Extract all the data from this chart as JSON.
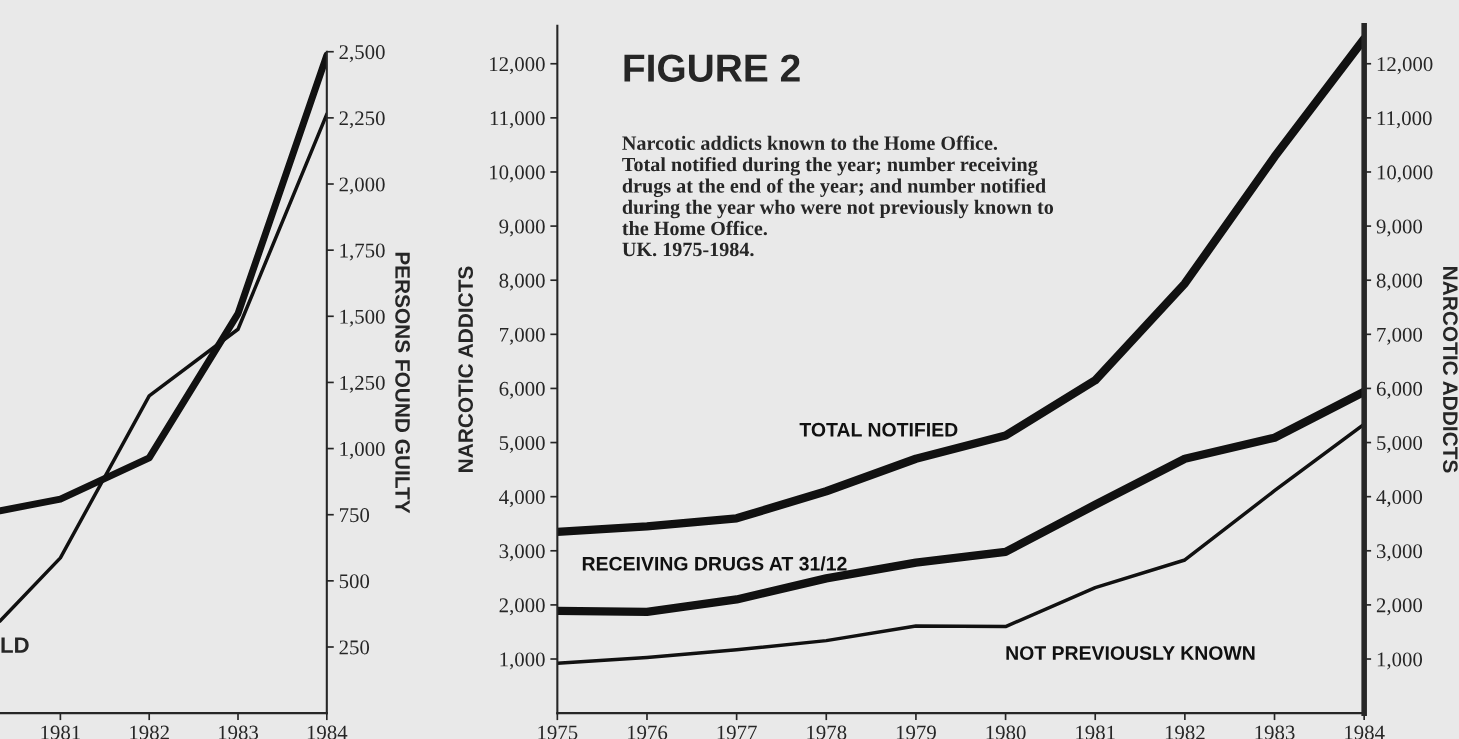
{
  "chart_data": [
    {
      "type": "line",
      "x": [
        1980.32,
        1981,
        1982,
        1983,
        1984
      ],
      "xlim": [
        1980.32,
        1984
      ],
      "xticks": [
        1981,
        1982,
        1983,
        1984
      ],
      "ylim": [
        0,
        2500
      ],
      "yticks": [
        {
          "value": 250,
          "label": "250"
        },
        {
          "value": 500,
          "label": "500"
        },
        {
          "value": 750,
          "label": "750"
        },
        {
          "value": 1000,
          "label": "1,000"
        },
        {
          "value": 1250,
          "label": "1,250"
        },
        {
          "value": 1500,
          "label": "1,500"
        },
        {
          "value": 1750,
          "label": "1,750"
        },
        {
          "value": 2000,
          "label": "2,000"
        },
        {
          "value": 2250,
          "label": "2,250"
        },
        {
          "value": 2500,
          "label": "2,500"
        }
      ],
      "ylabel": "PERSONS FOUND GUILTY",
      "grid": false,
      "legend": false,
      "series": [
        {
          "color": "#111111",
          "values": [
            765,
            809,
            965,
            1510,
            2486
          ]
        },
        {
          "color": "#111111",
          "values": [
            348,
            587,
            1199,
            1451,
            2264
          ]
        }
      ],
      "annotations": [
        "LD"
      ]
    },
    {
      "type": "line",
      "title": "FIGURE 2",
      "subtitle": "Narcotic addicts known to the Home Office.\nTotal notified during the year; number receiving\ndrugs at the end of the year; and number notified\nduring the year who were not previously known to\nthe Home Office.\nUK. 1975-1984.",
      "x": [
        1975,
        1976,
        1977,
        1978,
        1979,
        1980,
        1981,
        1982,
        1983,
        1984
      ],
      "xlim": [
        1975,
        1984
      ],
      "xticks": [
        1975,
        1976,
        1977,
        1978,
        1979,
        1980,
        1981,
        1982,
        1983,
        1984
      ],
      "ylim": [
        0,
        12700
      ],
      "yticks": [
        {
          "value": 1000,
          "label": "1,000"
        },
        {
          "value": 2000,
          "label": "2,000"
        },
        {
          "value": 3000,
          "label": "3,000"
        },
        {
          "value": 4000,
          "label": "4,000"
        },
        {
          "value": 5000,
          "label": "5,000"
        },
        {
          "value": 6000,
          "label": "6,000"
        },
        {
          "value": 7000,
          "label": "7,000"
        },
        {
          "value": 8000,
          "label": "8,000"
        },
        {
          "value": 9000,
          "label": "9,000"
        },
        {
          "value": 10000,
          "label": "10,000"
        },
        {
          "value": 11000,
          "label": "11,000"
        },
        {
          "value": 12000,
          "label": "12,000"
        }
      ],
      "y2lim": [
        0,
        12700
      ],
      "y2ticks": [
        {
          "value": 1000,
          "label": "1,000"
        },
        {
          "value": 2000,
          "label": "2,000"
        },
        {
          "value": 3000,
          "label": "3,000"
        },
        {
          "value": 4000,
          "label": "4,000"
        },
        {
          "value": 5000,
          "label": "5,000"
        },
        {
          "value": 6000,
          "label": "6,000"
        },
        {
          "value": 7000,
          "label": "7,000"
        },
        {
          "value": 8000,
          "label": "8,000"
        },
        {
          "value": 9000,
          "label": "9,000"
        },
        {
          "value": 10000,
          "label": "10,000"
        },
        {
          "value": 11000,
          "label": "11,000"
        },
        {
          "value": 12000,
          "label": "12,000"
        }
      ],
      "ylabel": "NARCOTIC ADDICTS",
      "y2label": "NARCOTIC ADDICTS",
      "grid": false,
      "legend": false,
      "series": [
        {
          "name": "TOTAL NOTIFIED",
          "color": "#111111",
          "values": [
            3350,
            3450,
            3600,
            4100,
            4700,
            5130,
            6150,
            7940,
            10280,
            12460
          ]
        },
        {
          "name": "RECEIVING DRUGS AT 31/12",
          "color": "#111111",
          "values": [
            1890,
            1870,
            2100,
            2490,
            2780,
            2980,
            3850,
            4700,
            5090,
            5940
          ]
        },
        {
          "name": "NOT PREVIOUSLY KNOWN",
          "color": "#111111",
          "values": [
            920,
            1030,
            1170,
            1340,
            1610,
            1600,
            2320,
            2830,
            4110,
            5340
          ]
        }
      ]
    }
  ]
}
